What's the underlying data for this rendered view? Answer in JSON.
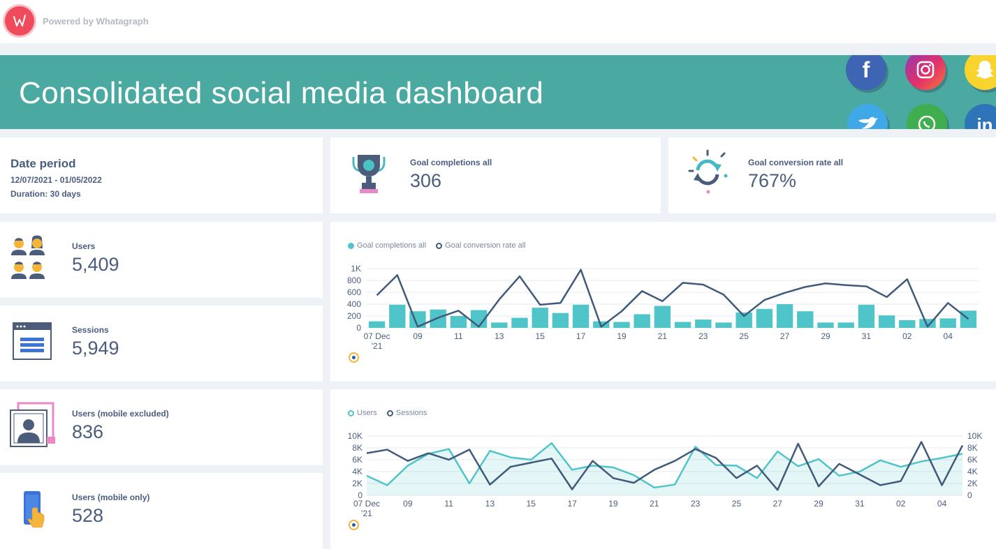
{
  "header": {
    "powered_by": "Powered by Whatagraph",
    "logo_icon": "whatagraph-logo-icon"
  },
  "banner": {
    "title": "Consolidated social media dashboard",
    "social_icons": [
      "facebook-icon",
      "instagram-icon",
      "snapchat-icon",
      "twitter-icon",
      "whatsapp-icon",
      "linkedin-icon"
    ]
  },
  "date_period": {
    "title": "Date period",
    "range": "12/07/2021 - 01/05/2022",
    "duration": "Duration:  30 days"
  },
  "kpis": {
    "goal_completions": {
      "label": "Goal completions all",
      "value": "306",
      "icon": "trophy-icon"
    },
    "goal_conversion": {
      "label": "Goal conversion rate all",
      "value": "767%",
      "icon": "refresh-cycle-icon"
    },
    "users": {
      "label": "Users",
      "value": "5,409",
      "icon": "users-group-icon"
    },
    "sessions": {
      "label": "Sessions",
      "value": "5,949",
      "icon": "browser-window-icon"
    },
    "users_desktop": {
      "label": "Users (mobile excluded)",
      "value": "836",
      "icon": "profile-picture-icon"
    },
    "users_mobile": {
      "label": "Users (mobile only)",
      "value": "528",
      "icon": "mobile-touch-icon"
    }
  },
  "colors": {
    "teal": "#4fc4c9",
    "navy": "#3f5a7a",
    "banner": "#4aa9a0",
    "text": "#4a5d7e"
  },
  "chart_data": [
    {
      "type": "bar",
      "legend": [
        "Goal completions all",
        "Goal conversion rate all"
      ],
      "x_ticks": [
        "07 Dec\n'21",
        "09",
        "11",
        "13",
        "15",
        "17",
        "19",
        "21",
        "23",
        "25",
        "27",
        "29",
        "31",
        "02",
        "04"
      ],
      "y_ticks": [
        "1K",
        "800",
        "600",
        "400",
        "200",
        "0"
      ],
      "ylim": [
        0,
        1000
      ],
      "series": [
        {
          "name": "Goal completions all",
          "type": "bar",
          "values": [
            110,
            390,
            280,
            310,
            200,
            300,
            90,
            170,
            340,
            250,
            390,
            110,
            100,
            230,
            370,
            100,
            140,
            90,
            260,
            320,
            400,
            280,
            90,
            90,
            390,
            210,
            130,
            150,
            160,
            290
          ]
        },
        {
          "name": "Goal conversion rate all",
          "type": "line",
          "values": [
            550,
            890,
            20,
            170,
            290,
            20,
            480,
            870,
            390,
            420,
            980,
            20,
            280,
            620,
            450,
            760,
            730,
            560,
            200,
            470,
            590,
            690,
            750,
            720,
            700,
            520,
            820,
            20,
            420,
            150
          ]
        }
      ]
    },
    {
      "type": "area",
      "legend": [
        "Users",
        "Sessions"
      ],
      "x_ticks": [
        "07 Dec\n'21",
        "09",
        "11",
        "13",
        "15",
        "17",
        "19",
        "21",
        "23",
        "25",
        "27",
        "29",
        "31",
        "02",
        "04"
      ],
      "y_ticks": [
        "10K",
        "8K",
        "6K",
        "4K",
        "2K",
        "0"
      ],
      "ylim": [
        0,
        10000
      ],
      "series": [
        {
          "name": "Users",
          "type": "area",
          "values": [
            3300,
            1700,
            5000,
            7000,
            7800,
            2000,
            7500,
            6400,
            6000,
            8800,
            4300,
            5000,
            4700,
            3400,
            1300,
            1800,
            8200,
            5100,
            5000,
            2900,
            7400,
            4900,
            6100,
            3300,
            4000,
            5900,
            4800,
            5700,
            6300,
            7000
          ]
        },
        {
          "name": "Sessions",
          "type": "line",
          "values": [
            7100,
            7700,
            5800,
            7100,
            6000,
            7700,
            1800,
            4800,
            5500,
            6200,
            1000,
            5800,
            2900,
            2100,
            4300,
            5800,
            7800,
            6300,
            2900,
            5000,
            900,
            8700,
            1500,
            5300,
            3500,
            1700,
            2400,
            9000,
            1700,
            8400
          ]
        }
      ]
    }
  ]
}
